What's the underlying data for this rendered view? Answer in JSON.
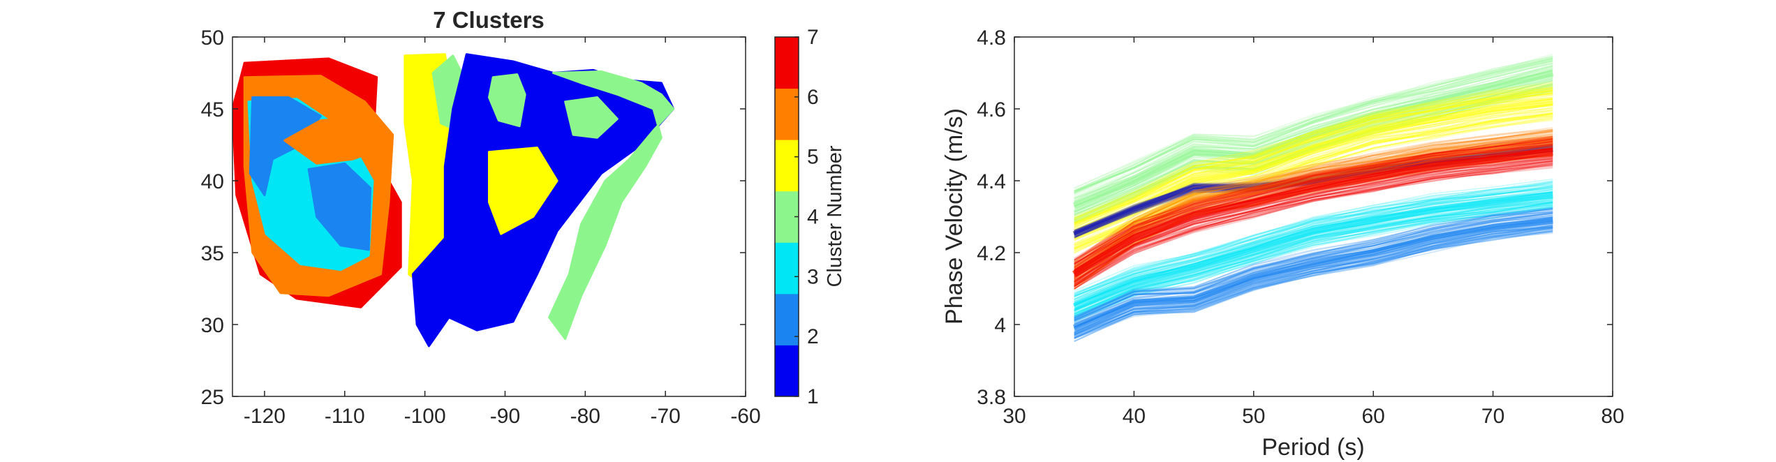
{
  "figure": {
    "left_panel": {
      "title": "7 Clusters",
      "xticks": [
        "-120",
        "-110",
        "-100",
        "-90",
        "-80",
        "-70",
        "-60"
      ],
      "yticks": [
        "25",
        "30",
        "35",
        "40",
        "45",
        "50"
      ],
      "colorbar_label": "Cluster Number",
      "colorbar_ticks": [
        "1",
        "2",
        "3",
        "4",
        "5",
        "6",
        "7"
      ]
    },
    "right_panel": {
      "xlabel": "Period (s)",
      "ylabel": "Phase Velocity (m/s)",
      "xticks": [
        "30",
        "40",
        "50",
        "60",
        "70",
        "80"
      ],
      "yticks": [
        "3.8",
        "4",
        "4.2",
        "4.4",
        "4.6",
        "4.8"
      ]
    }
  },
  "chart_data": [
    {
      "type": "heatmap",
      "title": "7 Clusters",
      "xlabel": "",
      "ylabel": "",
      "xlim": [
        -124,
        -60
      ],
      "ylim": [
        25,
        50
      ],
      "grid": false,
      "colorbar": {
        "label": "Cluster Number",
        "range": [
          1,
          7
        ],
        "colors": [
          "#0000f2",
          "#1a84f0",
          "#00e6f5",
          "#8cf58c",
          "#ffff00",
          "#ff8000",
          "#f20000"
        ]
      },
      "cluster_regions": [
        {
          "cluster": 7,
          "polygon": [
            [
              -122.5,
              48.2
            ],
            [
              -112,
              48.5
            ],
            [
              -106,
              47.2
            ],
            [
              -106.5,
              42
            ],
            [
              -103,
              38.5
            ],
            [
              -103,
              34
            ],
            [
              -108,
              31.2
            ],
            [
              -116,
              31.8
            ],
            [
              -120.5,
              33.5
            ],
            [
              -123.5,
              39
            ],
            [
              -124,
              45
            ]
          ]
        },
        {
          "cluster": 6,
          "polygon": [
            [
              -122.5,
              47.2
            ],
            [
              -113,
              47.3
            ],
            [
              -107.5,
              45.5
            ],
            [
              -104,
              43.2
            ],
            [
              -104.5,
              38.5
            ],
            [
              -105.5,
              33.5
            ],
            [
              -112,
              32
            ],
            [
              -118,
              32.2
            ],
            [
              -121.5,
              35
            ],
            [
              -122.5,
              41
            ]
          ]
        },
        {
          "cluster": 3,
          "polygon": [
            [
              -122,
              45.5
            ],
            [
              -116,
              45.7
            ],
            [
              -112,
              44.2
            ],
            [
              -109,
              42.5
            ],
            [
              -106.5,
              40
            ],
            [
              -107,
              34.8
            ],
            [
              -110.5,
              33.8
            ],
            [
              -115.5,
              34.2
            ],
            [
              -119.8,
              36.3
            ],
            [
              -121.5,
              40
            ]
          ]
        },
        {
          "cluster": 2,
          "polygon": [
            [
              -121.5,
              45.8
            ],
            [
              -117,
              45.8
            ],
            [
              -113,
              44.5
            ],
            [
              -115.5,
              42.5
            ],
            [
              -119,
              41.5
            ],
            [
              -120,
              39
            ],
            [
              -121.8,
              40.5
            ]
          ]
        },
        {
          "cluster": 2,
          "polygon": [
            [
              -114.5,
              40.8
            ],
            [
              -110,
              41.2
            ],
            [
              -106.8,
              39.5
            ],
            [
              -107,
              35.2
            ],
            [
              -110.5,
              35.5
            ],
            [
              -113.5,
              37.5
            ]
          ]
        },
        {
          "cluster": 6,
          "polygon": [
            [
              -117.5,
              42.8
            ],
            [
              -113,
              44.2
            ],
            [
              -108.5,
              44.4
            ],
            [
              -105.5,
              42.2
            ],
            [
              -109,
              41.5
            ],
            [
              -113.5,
              41.2
            ]
          ]
        },
        {
          "cluster": 5,
          "polygon": [
            [
              -102.5,
              48.7
            ],
            [
              -97.5,
              48.8
            ],
            [
              -96.3,
              45
            ],
            [
              -95.2,
              42
            ],
            [
              -96.3,
              37.3
            ],
            [
              -94.2,
              32.5
            ],
            [
              -98.5,
              32
            ],
            [
              -102,
              33.5
            ],
            [
              -101.5,
              40
            ],
            [
              -102.5,
              44
            ]
          ]
        },
        {
          "cluster": 4,
          "polygon": [
            [
              -99,
              47.5
            ],
            [
              -96.5,
              48.7
            ],
            [
              -94.5,
              46.5
            ],
            [
              -96,
              43.5
            ],
            [
              -98,
              44
            ]
          ]
        },
        {
          "cluster": 1,
          "polygon": [
            [
              -94.8,
              48.8
            ],
            [
              -89,
              48.3
            ],
            [
              -84,
              47.5
            ],
            [
              -79,
              47.7
            ],
            [
              -75,
              47
            ],
            [
              -70.5,
              46.8
            ],
            [
              -69,
              45
            ],
            [
              -73,
              42.5
            ],
            [
              -78,
              40.5
            ],
            [
              -83.5,
              36.5
            ],
            [
              -86,
              33.5
            ],
            [
              -89,
              30.2
            ],
            [
              -93.5,
              29.6
            ],
            [
              -97,
              30.5
            ],
            [
              -99.5,
              28.5
            ],
            [
              -101,
              30
            ],
            [
              -101.5,
              33.5
            ],
            [
              -97.5,
              36
            ],
            [
              -97.5,
              41
            ],
            [
              -96.5,
              45
            ]
          ]
        },
        {
          "cluster": 4,
          "polygon": [
            [
              -84,
              47.5
            ],
            [
              -78,
              47.6
            ],
            [
              -73,
              46.8
            ],
            [
              -70.5,
              46
            ],
            [
              -69,
              45
            ],
            [
              -71.5,
              43.5
            ],
            [
              -74.5,
              41.5
            ],
            [
              -77.5,
              40
            ],
            [
              -80.5,
              37
            ],
            [
              -82,
              33.5
            ],
            [
              -84.5,
              30.5
            ],
            [
              -82.5,
              29
            ],
            [
              -80.5,
              32
            ],
            [
              -77.5,
              35.5
            ],
            [
              -75.5,
              38.5
            ],
            [
              -72.5,
              41
            ],
            [
              -70.5,
              43
            ],
            [
              -71.5,
              45
            ],
            [
              -76,
              46
            ],
            [
              -80.5,
              46.8
            ]
          ]
        },
        {
          "cluster": 4,
          "polygon": [
            [
              -91.5,
              47.2
            ],
            [
              -88.5,
              47.4
            ],
            [
              -87.5,
              46
            ],
            [
              -88.2,
              43.8
            ],
            [
              -90.8,
              44.2
            ],
            [
              -92,
              45.8
            ]
          ]
        },
        {
          "cluster": 5,
          "polygon": [
            [
              -92,
              42
            ],
            [
              -86,
              42.3
            ],
            [
              -83.5,
              40
            ],
            [
              -86.5,
              37.5
            ],
            [
              -90.5,
              36.3
            ],
            [
              -92,
              38.5
            ]
          ]
        },
        {
          "cluster": 4,
          "polygon": [
            [
              -82.5,
              45.5
            ],
            [
              -78.5,
              45.8
            ],
            [
              -76,
              44.3
            ],
            [
              -78.5,
              43
            ],
            [
              -81.5,
              43.2
            ]
          ]
        }
      ]
    },
    {
      "type": "line",
      "title": "",
      "xlabel": "Period (s)",
      "ylabel": "Phase Velocity (m/s)",
      "xlim": [
        30,
        80
      ],
      "ylim": [
        3.8,
        4.8
      ],
      "grid": false,
      "x": [
        35,
        40,
        45,
        50,
        55,
        60,
        65,
        70,
        75
      ],
      "series": [
        {
          "color": "#8cf58c",
          "values": [
            4.33,
            4.4,
            4.48,
            4.47,
            4.53,
            4.58,
            4.62,
            4.66,
            4.7
          ],
          "spread": 0.05
        },
        {
          "color": "#ffff00",
          "values": [
            4.25,
            4.32,
            4.4,
            4.43,
            4.49,
            4.54,
            4.57,
            4.6,
            4.62
          ],
          "spread": 0.05
        },
        {
          "color": "#1c1cb4",
          "values": [
            4.25,
            4.32,
            4.38,
            4.38,
            4.4,
            4.43,
            4.45,
            4.47,
            4.49
          ],
          "spread": 0.01
        },
        {
          "color": "#ff8000",
          "values": [
            4.14,
            4.26,
            4.34,
            4.37,
            4.41,
            4.44,
            4.47,
            4.49,
            4.51
          ],
          "spread": 0.04
        },
        {
          "color": "#f20000",
          "values": [
            4.14,
            4.24,
            4.3,
            4.34,
            4.38,
            4.41,
            4.44,
            4.46,
            4.48
          ],
          "spread": 0.04
        },
        {
          "color": "#00e6f5",
          "values": [
            4.05,
            4.12,
            4.16,
            4.21,
            4.26,
            4.29,
            4.32,
            4.34,
            4.36
          ],
          "spread": 0.04
        },
        {
          "color": "#1a84f0",
          "values": [
            3.99,
            4.06,
            4.07,
            4.13,
            4.17,
            4.2,
            4.24,
            4.27,
            4.29
          ],
          "spread": 0.035
        }
      ]
    }
  ]
}
